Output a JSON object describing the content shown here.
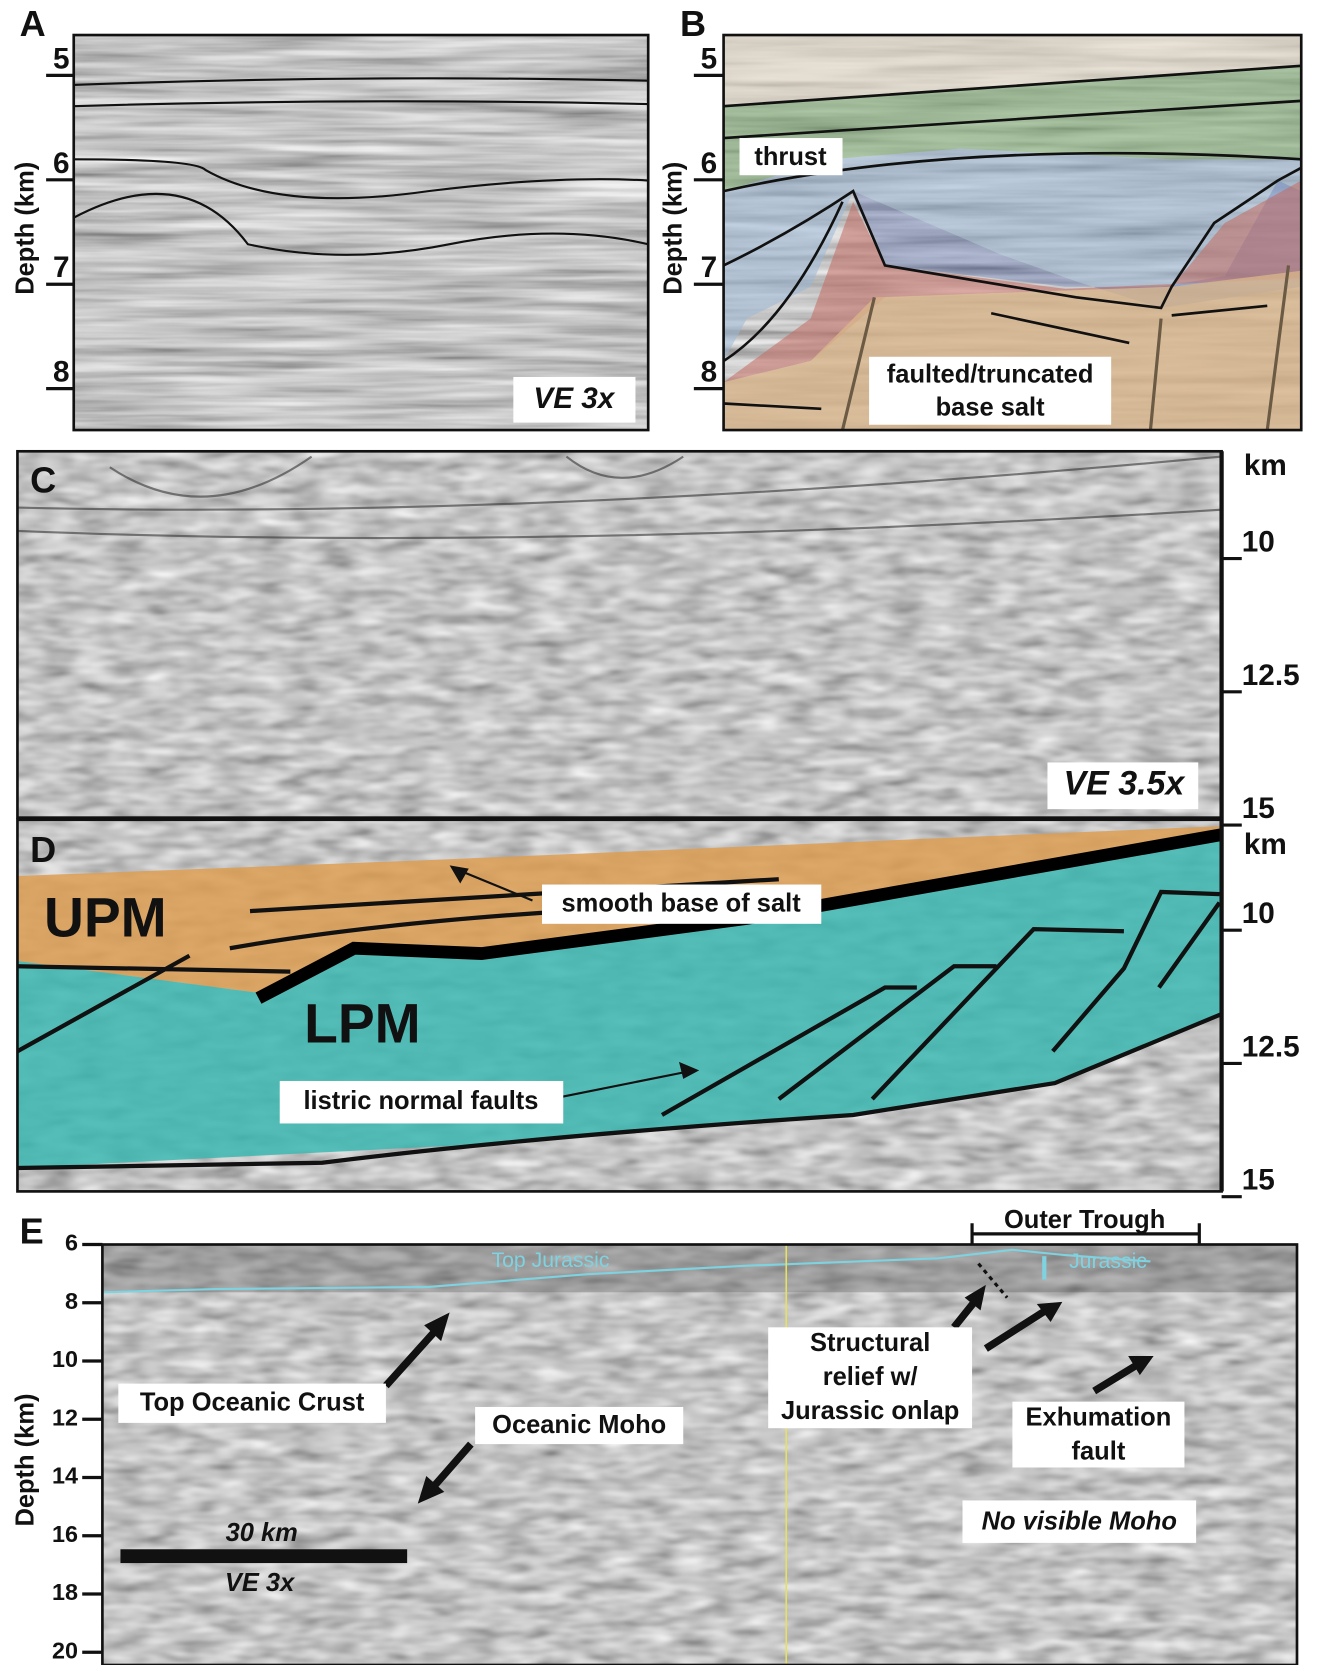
{
  "panels": [
    {
      "letter": "A",
      "axis_label": "Depth (km)",
      "ticks": [
        5,
        6,
        7,
        8
      ],
      "annotations": {
        "ve": "VE 3x"
      }
    },
    {
      "letter": "B",
      "axis_label": "Depth (km)",
      "ticks": [
        5,
        6,
        7,
        8
      ],
      "annotations": {
        "thrust": "thrust",
        "base_salt": [
          "faulted/truncated",
          "base salt"
        ]
      }
    },
    {
      "letter": "C",
      "axis_label": "km",
      "ticks": [
        10,
        12.5,
        15
      ],
      "annotations": {
        "ve": "VE 3.5x"
      }
    },
    {
      "letter": "D",
      "axis_label": "km",
      "ticks": [
        10,
        12.5,
        15
      ],
      "annotations": {
        "upm": "UPM",
        "lpm": "LPM",
        "smooth": "smooth base of salt",
        "listric": "listric normal faults"
      }
    },
    {
      "letter": "E",
      "axis_label": "Depth (km)",
      "ticks": [
        6,
        8,
        10,
        12,
        14,
        16,
        18,
        20
      ],
      "annotations": {
        "outer_trough": "Outer Trough",
        "top_jurassic": "Top Jurassic",
        "jurassic": "Jurassic",
        "top_oceanic_crust": "Top Oceanic Crust",
        "oceanic_moho": "Oceanic Moho",
        "structural_relief": [
          "Structural",
          "relief w/",
          "Jurassic onlap"
        ],
        "exhumation": [
          "Exhumation",
          "fault"
        ],
        "no_moho": "No visible Moho",
        "scale_length": "30 km",
        "ve": "VE 3x"
      }
    }
  ]
}
